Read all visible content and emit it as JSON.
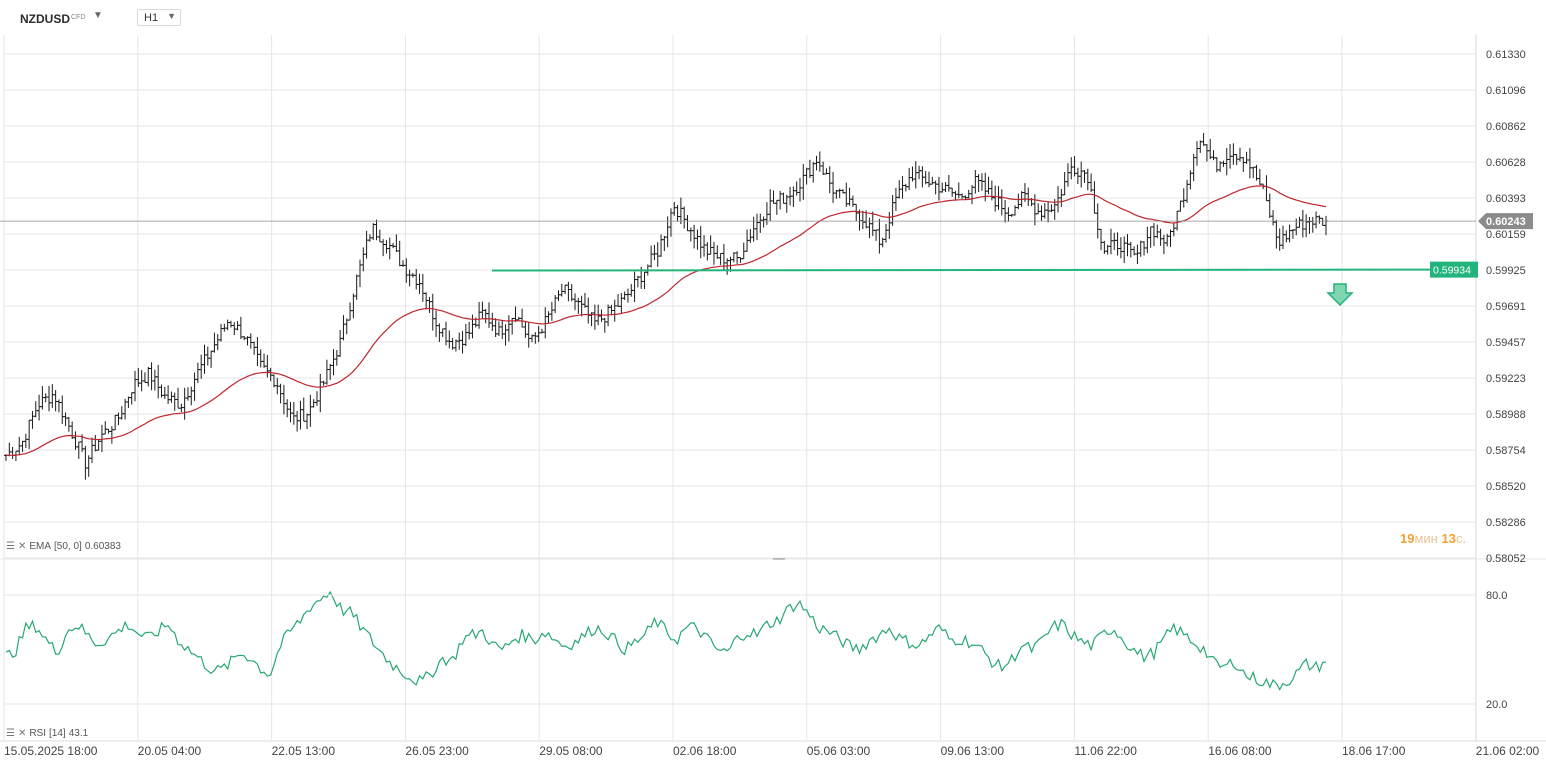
{
  "header": {
    "symbol": "NZDUSD",
    "symbol_type": "CFD",
    "timeframe": "H1"
  },
  "price_axis": {
    "ticks": [
      "0.61330",
      "0.61096",
      "0.60862",
      "0.60628",
      "0.60393",
      "0.60159",
      "0.59925",
      "0.59691",
      "0.59457",
      "0.59223",
      "0.58988",
      "0.58754",
      "0.58520",
      "0.58286",
      "0.58052"
    ],
    "current_price": "0.60243",
    "current_price_value": 0.60243,
    "line_price": "0.59934",
    "line_price_value": 0.59934
  },
  "time_axis": {
    "ticks": [
      "15.05.2025  18:00",
      "20.05  04:00",
      "22.05  13:00",
      "26.05  23:00",
      "29.05  08:00",
      "02.06  18:00",
      "05.06  03:00",
      "09.06  13:00",
      "11.06  22:00",
      "16.06  08:00",
      "18.06  17:00",
      "21.06  02:00"
    ]
  },
  "indicators": {
    "ema_label": "EMA",
    "ema_params": "[50, 0]",
    "ema_value": "0.60383",
    "rsi_label": "RSI",
    "rsi_params": "[14]",
    "rsi_value": "43.1",
    "rsi_ticks": [
      "80.0",
      "20.0"
    ]
  },
  "countdown": {
    "minutes": "19",
    "min_unit": "мин",
    "seconds": "13",
    "sec_unit": "с."
  },
  "colors": {
    "candle": "#1a1a1a",
    "ema": "#c0262d",
    "rsi": "#27a870",
    "support_line": "#22b47c",
    "current_tag": "#8c8c8c",
    "grid": "#e3e6ea"
  },
  "icons": [
    "list-icon",
    "close-icon",
    "chevron-down-icon",
    "arrow-down-icon"
  ],
  "chart_data": [
    {
      "type": "candlestick",
      "title": "",
      "symbol": "NZDUSD",
      "timeframe": "H1",
      "ylim": [
        0.58052,
        0.6133
      ],
      "x_range": [
        "15.05.2025 18:00",
        "17.06 13:00"
      ],
      "series": [
        {
          "name": "Close",
          "points": [
            [
              "15.05 18:00",
              0.5872
            ],
            [
              "16.05 12:00",
              0.588
            ],
            [
              "17.05 04:00",
              0.5905
            ],
            [
              "17.05 12:00",
              0.5912
            ],
            [
              "18.05 04:00",
              0.589
            ],
            [
              "18.05 20:00",
              0.5867
            ],
            [
              "19.05 12:00",
              0.5885
            ],
            [
              "20.05 04:00",
              0.5895
            ],
            [
              "20.05 20:00",
              0.5918
            ],
            [
              "21.05 04:00",
              0.5925
            ],
            [
              "21.05 20:00",
              0.591
            ],
            [
              "22.05 04:00",
              0.5905
            ],
            [
              "22.05 20:00",
              0.5925
            ],
            [
              "23.05 04:00",
              0.5942
            ],
            [
              "23.05 12:00",
              0.596
            ],
            [
              "23.05 20:00",
              0.595
            ],
            [
              "24.05 04:00",
              0.593
            ],
            [
              "24.05 20:00",
              0.592
            ],
            [
              "25.05 04:00",
              0.5895
            ],
            [
              "25.05 20:00",
              0.59
            ],
            [
              "26.05 04:00",
              0.592
            ],
            [
              "26.05 12:00",
              0.5945
            ],
            [
              "26.05 20:00",
              0.5985
            ],
            [
              "27.05 04:00",
              0.602
            ],
            [
              "27.05 12:00",
              0.601
            ],
            [
              "27.05 20:00",
              0.5995
            ],
            [
              "28.05 04:00",
              0.5985
            ],
            [
              "28.05 12:00",
              0.596
            ],
            [
              "28.05 20:00",
              0.5945
            ],
            [
              "29.05 04:00",
              0.595
            ],
            [
              "29.05 12:00",
              0.5965
            ],
            [
              "29.05 20:00",
              0.5952
            ],
            [
              "30.05 04:00",
              0.5965
            ],
            [
              "30.05 12:00",
              0.5945
            ],
            [
              "30.05 20:00",
              0.596
            ],
            [
              "31.05 04:00",
              0.598
            ],
            [
              "31.05 20:00",
              0.597
            ],
            [
              "01.06 04:00",
              0.5958
            ],
            [
              "01.06 12:00",
              0.5965
            ],
            [
              "01.06 20:00",
              0.5975
            ],
            [
              "02.06 04:00",
              0.599
            ],
            [
              "02.06 12:00",
              0.6005
            ],
            [
              "02.06 20:00",
              0.6035
            ],
            [
              "03.06 04:00",
              0.602
            ],
            [
              "03.06 12:00",
              0.6005
            ],
            [
              "03.06 20:00",
              0.6
            ],
            [
              "04.06 04:00",
              0.6
            ],
            [
              "04.06 12:00",
              0.602
            ],
            [
              "04.06 20:00",
              0.6035
            ],
            [
              "05.06 04:00",
              0.604
            ],
            [
              "05.06 12:00",
              0.605
            ],
            [
              "05.06 20:00",
              0.6065
            ],
            [
              "06.06 04:00",
              0.6045
            ],
            [
              "06.06 12:00",
              0.6035
            ],
            [
              "06.06 20:00",
              0.6025
            ],
            [
              "07.06 04:00",
              0.601
            ],
            [
              "07.06 12:00",
              0.604
            ],
            [
              "07.06 20:00",
              0.6055
            ],
            [
              "08.06 04:00",
              0.605
            ],
            [
              "08.06 12:00",
              0.6045
            ],
            [
              "08.06 20:00",
              0.604
            ],
            [
              "09.06 04:00",
              0.605
            ],
            [
              "09.06 12:00",
              0.604
            ],
            [
              "09.06 20:00",
              0.603
            ],
            [
              "10.06 04:00",
              0.604
            ],
            [
              "10.06 12:00",
              0.603
            ],
            [
              "10.06 20:00",
              0.6035
            ],
            [
              "11.06 04:00",
              0.606
            ],
            [
              "11.06 12:00",
              0.6055
            ],
            [
              "11.06 20:00",
              0.6005
            ],
            [
              "12.06 04:00",
              0.601
            ],
            [
              "12.06 12:00",
              0.6
            ],
            [
              "12.06 20:00",
              0.602
            ],
            [
              "13.06 04:00",
              0.601
            ],
            [
              "13.06 12:00",
              0.604
            ],
            [
              "13.06 20:00",
              0.608
            ],
            [
              "14.06 04:00",
              0.606
            ],
            [
              "14.06 12:00",
              0.607
            ],
            [
              "14.06 20:00",
              0.6065
            ],
            [
              "15.06 04:00",
              0.6045
            ],
            [
              "15.06 12:00",
              0.601
            ],
            [
              "16.06 04:00",
              0.602
            ],
            [
              "16.06 12:00",
              0.6025
            ],
            [
              "16.06 20:00",
              0.6024
            ]
          ]
        },
        {
          "name": "EMA [50, 0]",
          "last": 0.60383
        }
      ]
    },
    {
      "type": "line",
      "title": "",
      "series_name": "RSI [14]",
      "ylim": [
        0,
        100
      ],
      "ticks": [
        80.0,
        20.0
      ],
      "last": 43.1,
      "values": [
        46,
        50,
        62,
        63,
        55,
        48,
        60,
        64,
        58,
        53,
        56,
        60,
        64,
        59,
        56,
        60,
        64,
        55,
        50,
        45,
        40,
        38,
        42,
        48,
        46,
        40,
        36,
        52,
        60,
        66,
        74,
        78,
        82,
        72,
        70,
        62,
        55,
        48,
        42,
        38,
        34,
        32,
        38,
        45,
        44,
        56,
        58,
        60,
        52,
        50,
        56,
        58,
        55,
        60,
        56,
        52,
        54,
        58,
        62,
        60,
        55,
        50,
        54,
        58,
        66,
        60,
        55,
        62,
        62,
        56,
        50,
        48,
        56,
        60,
        58,
        64,
        66,
        72,
        76,
        70,
        62,
        60,
        56,
        52,
        50,
        55,
        58,
        62,
        56,
        54,
        52,
        58,
        62,
        55,
        56,
        54,
        50,
        44,
        40,
        44,
        52,
        50,
        54,
        62,
        64,
        58,
        54,
        52,
        58,
        62,
        56,
        50,
        46,
        48,
        55,
        62,
        58,
        54,
        50,
        42,
        40,
        44,
        36,
        34,
        32,
        30,
        32,
        36,
        42,
        40,
        43.1
      ]
    }
  ]
}
